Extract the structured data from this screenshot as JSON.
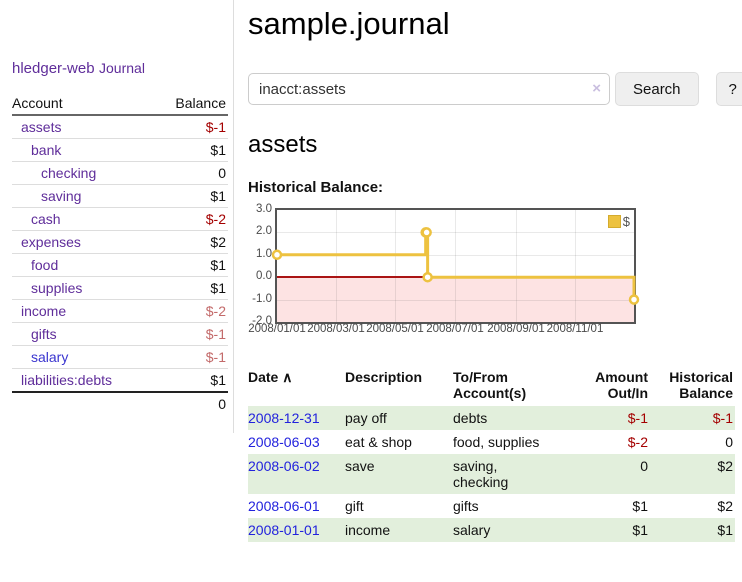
{
  "sidebar": {
    "brand": "hledger-web",
    "journal_link": "Journal",
    "accounts_table": {
      "headers": {
        "account": "Account",
        "balance": "Balance"
      },
      "rows": [
        {
          "name": "assets",
          "balance": "$-1"
        },
        {
          "name": "bank",
          "balance": "$1"
        },
        {
          "name": "checking",
          "balance": "0"
        },
        {
          "name": "saving",
          "balance": "$1"
        },
        {
          "name": "cash",
          "balance": "$-2"
        },
        {
          "name": "expenses",
          "balance": "$2"
        },
        {
          "name": "food",
          "balance": "$1"
        },
        {
          "name": "supplies",
          "balance": "$1"
        },
        {
          "name": "income",
          "balance": "$-2"
        },
        {
          "name": "gifts",
          "balance": "$-1"
        },
        {
          "name": "salary",
          "balance": "$-1"
        },
        {
          "name": "liabilities:debts",
          "balance": "$1"
        }
      ],
      "total": "0"
    }
  },
  "main": {
    "title": "sample.journal",
    "search": {
      "value": "inacct:assets",
      "clear_icon": "×",
      "search_button": "Search",
      "help_button": "?"
    },
    "account_heading": "assets",
    "chart_heading": "Historical Balance:"
  },
  "chart_data": {
    "type": "line",
    "title": "Historical Balance:",
    "step": true,
    "xlim": [
      0,
      365
    ],
    "ylim": [
      -2,
      3
    ],
    "yticks": [
      "3.0",
      "2.0",
      "1.0",
      "0.0",
      "-1.0",
      "-2.0"
    ],
    "ytick_values": [
      3,
      2,
      1,
      0,
      -1,
      -2
    ],
    "xticks": [
      {
        "label": "2008/01/01",
        "x": 0
      },
      {
        "label": "2008/03/01",
        "x": 60
      },
      {
        "label": "2008/05/01",
        "x": 121
      },
      {
        "label": "2008/07/01",
        "x": 182
      },
      {
        "label": "2008/09/01",
        "x": 244
      },
      {
        "label": "2008/11/01",
        "x": 305
      }
    ],
    "series": [
      {
        "name": "$",
        "color": "#edc240",
        "points": [
          {
            "date": "2008/01/01",
            "x": 0,
            "y": 1
          },
          {
            "date": "2008/06/01",
            "x": 152,
            "y": 2
          },
          {
            "date": "2008/06/02",
            "x": 153,
            "y": 2
          },
          {
            "date": "2008/06/03",
            "x": 154,
            "y": 0
          },
          {
            "date": "2008/12/31",
            "x": 365,
            "y": -1
          }
        ]
      }
    ],
    "legend": {
      "label": "$",
      "position": "top-right",
      "swatch_color": "#edc240"
    },
    "negative_region_fill": "#fde3e3",
    "zero_line_color": "#aa1414",
    "grid": true
  },
  "register_table": {
    "headers": {
      "date": "Date",
      "sort_icon": "∧",
      "description": "Description",
      "accounts": "To/From Account(s)",
      "amount": "Amount Out/In",
      "balance": "Historical Balance"
    },
    "rows": [
      {
        "date": "2008-12-31",
        "description": "pay off",
        "accounts_lines": [
          "debts"
        ],
        "amount": "$-1",
        "balance": "$-1"
      },
      {
        "date": "2008-06-03",
        "description": "eat & shop",
        "accounts_lines": [
          "food, supplies"
        ],
        "amount": "$-2",
        "balance": "0"
      },
      {
        "date": "2008-06-02",
        "description": "save",
        "accounts_lines": [
          "saving,",
          "checking"
        ],
        "amount": "0",
        "balance": "$2"
      },
      {
        "date": "2008-06-01",
        "description": "gift",
        "accounts_lines": [
          "gifts"
        ],
        "amount": "$1",
        "balance": "$2"
      },
      {
        "date": "2008-01-01",
        "description": "income",
        "accounts_lines": [
          "salary"
        ],
        "amount": "$1",
        "balance": "$1"
      }
    ]
  }
}
